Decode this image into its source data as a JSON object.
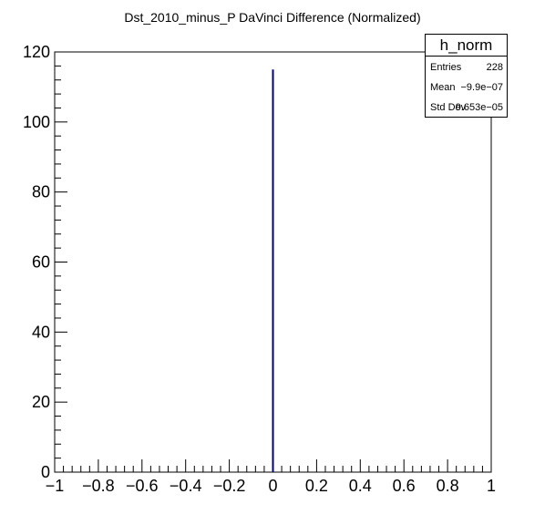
{
  "chart_data": {
    "type": "histogram",
    "title": "Dst_2010_minus_P DaVinci Difference (Normalized)",
    "xlabel": "",
    "ylabel": "",
    "xlim": [
      -1,
      1
    ],
    "ylim": [
      0,
      120
    ],
    "x_ticks": [
      "−1",
      "−0.8",
      "−0.6",
      "−0.4",
      "−0.2",
      "0",
      "0.2",
      "0.4",
      "0.6",
      "0.8",
      "1"
    ],
    "y_ticks": [
      "0",
      "20",
      "40",
      "60",
      "80",
      "100",
      "120"
    ],
    "grid": false,
    "series": [
      {
        "color": "#000080",
        "x": [
          0
        ],
        "values": [
          115
        ]
      }
    ],
    "stats_box": {
      "title": "h_norm",
      "rows": [
        {
          "label": "Entries",
          "value": "228"
        },
        {
          "label": "Mean",
          "value": "−9.9e−07"
        },
        {
          "label": "Std Dev",
          "value": "9.653e−05"
        }
      ]
    }
  }
}
